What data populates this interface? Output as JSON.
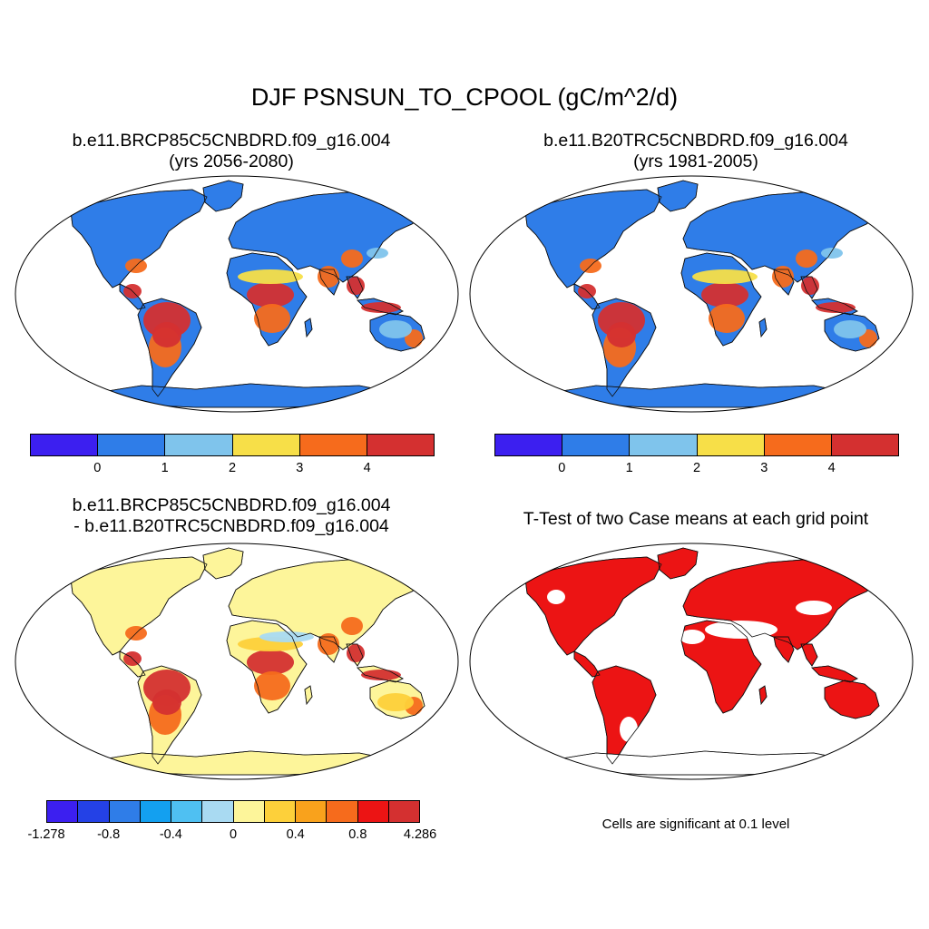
{
  "title": "DJF PSNSUN_TO_CPOOL (gC/m^2/d)",
  "panels": [
    {
      "id": "future",
      "title_line1": "b.e11.BRCP85C5CNBDRD.f09_g16.004",
      "title_line2": "(yrs 2056-2080)"
    },
    {
      "id": "historical",
      "title_line1": "b.e11.B20TRC5CNBDRD.f09_g16.004",
      "title_line2": "(yrs 1981-2005)"
    },
    {
      "id": "difference",
      "title_line1": "b.e11.BRCP85C5CNBDRD.f09_g16.004",
      "title_line2": "- b.e11.B20TRC5CNBDRD.f09_g16.004"
    },
    {
      "id": "ttest",
      "title_line1": "T-Test of two Case means at each grid point",
      "note": "Cells are significant at 0.1 level"
    }
  ],
  "colorbar_main": {
    "colors": [
      "#3c1ff0",
      "#2f7de8",
      "#7fc4ec",
      "#f7df48",
      "#f66b1c",
      "#d43030"
    ],
    "labels": [
      "0",
      "1",
      "2",
      "3",
      "4"
    ]
  },
  "colorbar_diff": {
    "colors": [
      "#3c1ff0",
      "#2441e6",
      "#2f7de8",
      "#13a0f0",
      "#4fc0f2",
      "#a9daf2",
      "#fdf59a",
      "#fdd03a",
      "#f9a21c",
      "#f66b1c",
      "#ec1414",
      "#d43030"
    ],
    "labels": [
      "-1.278",
      "-0.8",
      "-0.4",
      "0",
      "0.4",
      "0.8",
      "4.286"
    ]
  },
  "colors": {
    "land_base": "#2f7de8",
    "tropics": "#d43030",
    "subtropics": "#f66b1c",
    "savanna": "#f7df48",
    "diff_base": "#fdf59a",
    "significant": "#ec1414"
  }
}
